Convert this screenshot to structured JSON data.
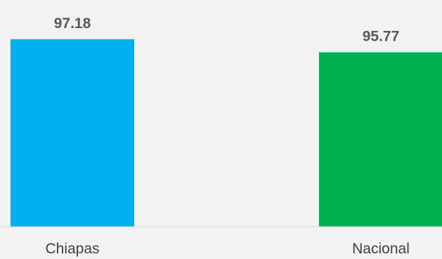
{
  "chart_data": {
    "type": "bar",
    "title": "",
    "xlabel": "",
    "ylabel": "",
    "categories": [
      "Chiapas",
      "Nacional"
    ],
    "values": [
      97.18,
      95.77
    ],
    "value_labels": [
      "97.18",
      "95.77"
    ],
    "colors": [
      "#00b0f0",
      "#00b050"
    ],
    "ylim": [
      77,
      98
    ],
    "grid": false,
    "legend": "none"
  }
}
